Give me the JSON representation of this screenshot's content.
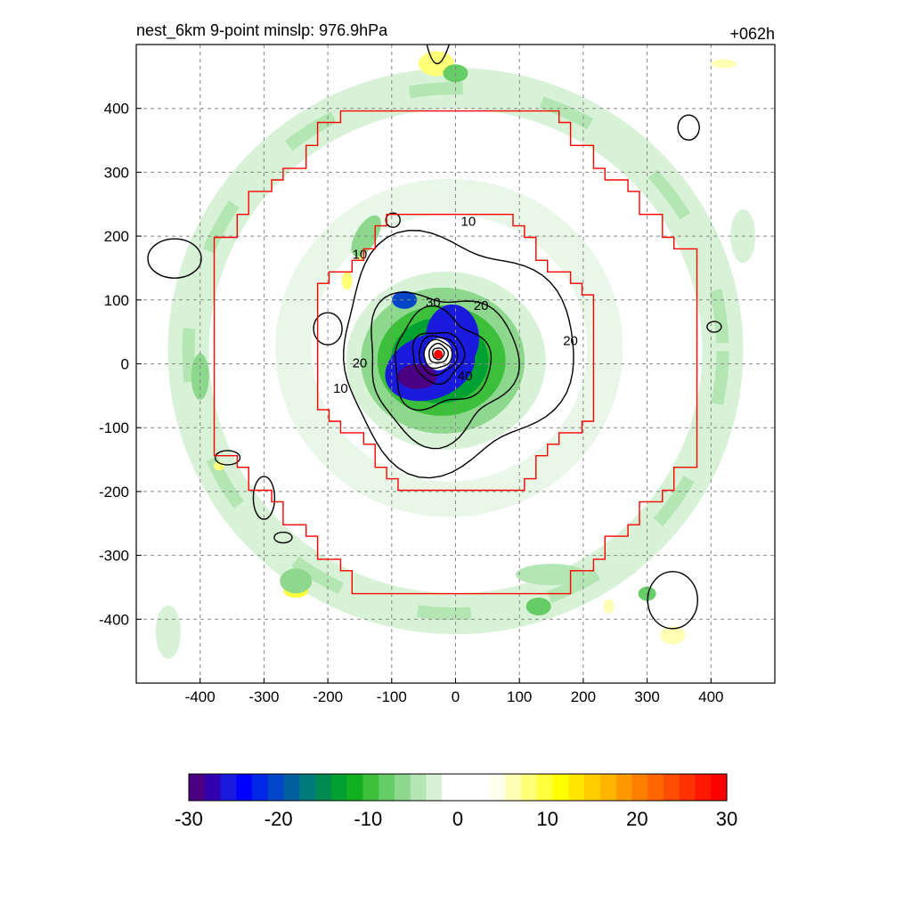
{
  "chart_data": {
    "type": "heatmap",
    "title": "nest_6km  9-point minslp: 976.9hPa",
    "time_label": "+062h",
    "xlabel": "",
    "ylabel": "",
    "xlim": [
      -500,
      500
    ],
    "ylim": [
      -500,
      500
    ],
    "x_ticks": [
      -400,
      -300,
      -200,
      -100,
      0,
      100,
      200,
      300,
      400
    ],
    "y_ticks": [
      400,
      300,
      200,
      100,
      0,
      -100,
      -200,
      -300,
      -400
    ],
    "grid": true,
    "colorbar": {
      "min": -30,
      "max": 30,
      "ticks": [
        -30,
        -20,
        -10,
        0,
        10,
        20,
        30
      ],
      "placement": "bottom",
      "colors": [
        "#4b0082",
        "#3300b0",
        "#1a1adc",
        "#0000ff",
        "#0028e6",
        "#0046c8",
        "#0060a0",
        "#007a7a",
        "#008a50",
        "#00a032",
        "#10b01e",
        "#3cc03c",
        "#66cc66",
        "#8ed88e",
        "#b4e6b4",
        "#d8f2d8",
        "#ffffff",
        "#ffffff",
        "#ffffff",
        "#fffff0",
        "#ffffb4",
        "#ffff78",
        "#ffff3c",
        "#ffff00",
        "#ffe600",
        "#ffcc00",
        "#ffb400",
        "#ff9900",
        "#ff7f00",
        "#ff6600",
        "#ff4c00",
        "#ff3300",
        "#ff1900",
        "#ff0000"
      ]
    },
    "contour_labels": [
      "10",
      "20",
      "30",
      "40"
    ],
    "storm_center": {
      "x": -27,
      "y": 15
    },
    "red_boundaries": [
      {
        "name": "inner",
        "radius": 225,
        "center": [
          0,
          18
        ]
      },
      {
        "name": "outer",
        "radius": 410,
        "center": [
          0,
          20
        ]
      }
    ]
  }
}
